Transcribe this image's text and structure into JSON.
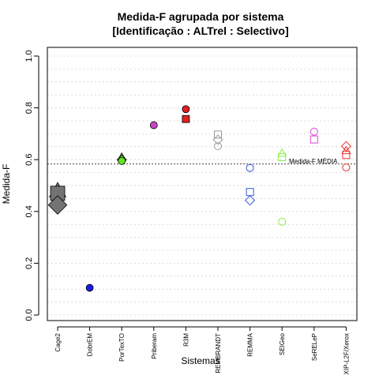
{
  "chart_data": {
    "type": "scatter",
    "title": "Medida-F agrupada por sistema",
    "subtitle": "[Identificação : ALTrel : Selectivo]",
    "xlabel": "Sistemas",
    "ylabel": "Medida-F",
    "ylim": [
      0.0,
      1.0
    ],
    "yticks": [
      "0.0",
      "0.2",
      "0.4",
      "0.6",
      "0.8",
      "1.0"
    ],
    "grid": "horizontal dotted at 0.05 intervals",
    "categories": [
      "Cage2",
      "DobrEM",
      "PorTexTO",
      "Priberam",
      "R3M",
      "REMBRANDT",
      "REMMA",
      "SEIGeo",
      "SeRELeP",
      "XIP-L2F/Xerox"
    ],
    "reference_line": {
      "value": 0.583,
      "label": "Medida-F MÉDIA"
    },
    "points": [
      {
        "category": "Cage2",
        "y": 0.48,
        "shape": "triangle",
        "filled": true,
        "color": "#737373",
        "size": "large"
      },
      {
        "category": "Cage2",
        "y": 0.47,
        "shape": "square",
        "filled": true,
        "color": "#737373",
        "size": "large"
      },
      {
        "category": "Cage2",
        "y": 0.425,
        "shape": "diamond",
        "filled": true,
        "color": "#737373",
        "size": "large"
      },
      {
        "category": "DobrEM",
        "y": 0.105,
        "shape": "circle",
        "filled": true,
        "color": "#1a1ae6"
      },
      {
        "category": "PorTexTO",
        "y": 0.61,
        "shape": "triangle",
        "filled": true,
        "color": "#66e620"
      },
      {
        "category": "PorTexTO",
        "y": 0.6,
        "shape": "diamond",
        "filled": true,
        "color": "#66e620"
      },
      {
        "category": "PorTexTO",
        "y": 0.595,
        "shape": "circle",
        "filled": true,
        "color": "#66e620"
      },
      {
        "category": "Priberam",
        "y": 0.733,
        "shape": "circle",
        "filled": true,
        "color": "#cc44cc"
      },
      {
        "category": "R3M",
        "y": 0.795,
        "shape": "circle",
        "filled": true,
        "color": "#e02020"
      },
      {
        "category": "R3M",
        "y": 0.757,
        "shape": "square",
        "filled": true,
        "color": "#e02020"
      },
      {
        "category": "REMBRANDT",
        "y": 0.697,
        "shape": "square",
        "filled": false,
        "color": "#999999"
      },
      {
        "category": "REMBRANDT",
        "y": 0.677,
        "shape": "diamond",
        "filled": false,
        "color": "#999999"
      },
      {
        "category": "REMBRANDT",
        "y": 0.652,
        "shape": "circle",
        "filled": false,
        "color": "#999999"
      },
      {
        "category": "REMMA",
        "y": 0.568,
        "shape": "circle",
        "filled": false,
        "color": "#3355dd"
      },
      {
        "category": "REMMA",
        "y": 0.475,
        "shape": "square",
        "filled": false,
        "color": "#3355dd"
      },
      {
        "category": "REMMA",
        "y": 0.443,
        "shape": "diamond",
        "filled": false,
        "color": "#3355dd"
      },
      {
        "category": "SEIGeo",
        "y": 0.625,
        "shape": "triangle",
        "filled": false,
        "color": "#88ee44"
      },
      {
        "category": "SEIGeo",
        "y": 0.61,
        "shape": "square",
        "filled": false,
        "color": "#88ee44"
      },
      {
        "category": "SEIGeo",
        "y": 0.36,
        "shape": "circle",
        "filled": false,
        "color": "#88ee44"
      },
      {
        "category": "SeRELeP",
        "y": 0.708,
        "shape": "circle",
        "filled": false,
        "color": "#dd44dd"
      },
      {
        "category": "SeRELeP",
        "y": 0.678,
        "shape": "square",
        "filled": false,
        "color": "#dd44dd"
      },
      {
        "category": "XIP-L2F/Xerox",
        "y": 0.652,
        "shape": "diamond",
        "filled": false,
        "color": "#ee3333"
      },
      {
        "category": "XIP-L2F/Xerox",
        "y": 0.635,
        "shape": "triangle",
        "filled": false,
        "color": "#ee3333"
      },
      {
        "category": "XIP-L2F/Xerox",
        "y": 0.618,
        "shape": "square",
        "filled": false,
        "color": "#ee3333"
      },
      {
        "category": "XIP-L2F/Xerox",
        "y": 0.57,
        "shape": "circle",
        "filled": false,
        "color": "#ee3333"
      }
    ]
  }
}
